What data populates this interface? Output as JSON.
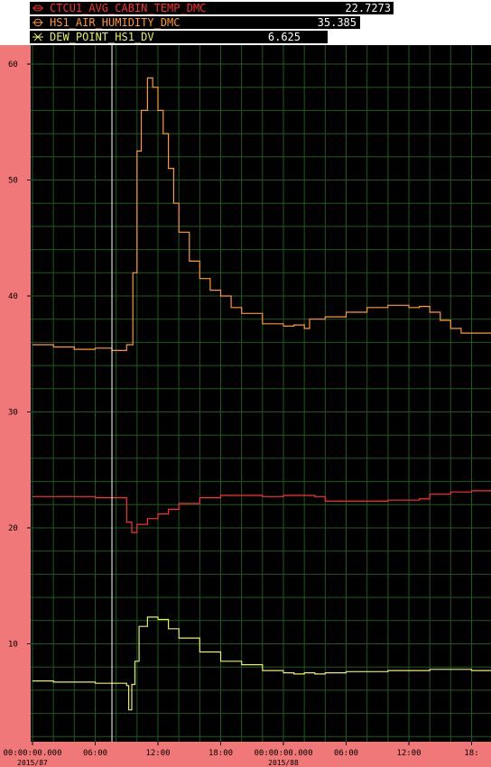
{
  "legend": [
    {
      "name": "CTCU1_AVG_CABIN_TEMP_DMC",
      "value": "22.7273",
      "color": "#ff3030",
      "marker": "ellipse-marker-icon"
    },
    {
      "name": "HS1_AIR_HUMIDITY_DMC",
      "value": "35.385",
      "color": "#ff9a2a",
      "marker": "circle-marker-icon"
    },
    {
      "name": "DEW_POINT_HS1_DV",
      "value": "6.625",
      "color": "#e8f060",
      "marker": "x-marker-icon"
    }
  ],
  "colors": {
    "plot_bg": "#000000",
    "grid": "#1f5a1f",
    "page_bg": "#f07878",
    "cursor": "#ffffff"
  },
  "chart_data": {
    "type": "line",
    "ylim": [
      0,
      60
    ],
    "y_ticks": [
      "60",
      "50",
      "40",
      "30",
      "20",
      "10"
    ],
    "xlim_hours": [
      0,
      44
    ],
    "x_ticks": [
      {
        "label": "00:00:00.000",
        "date": "2015/87"
      },
      {
        "label": "06:00",
        "date": ""
      },
      {
        "label": "12:00",
        "date": ""
      },
      {
        "label": "18:00",
        "date": ""
      },
      {
        "label": "00:00:00.000",
        "date": "2015/88"
      },
      {
        "label": "06:00",
        "date": ""
      },
      {
        "label": "12:00",
        "date": ""
      },
      {
        "label": "18:",
        "date": ""
      }
    ],
    "cursor_x": 7.6,
    "grid": true,
    "series": [
      {
        "name": "CTCU1_AVG_CABIN_TEMP_DMC",
        "color": "#ff3030",
        "x": [
          0,
          2,
          4,
          6,
          8,
          9,
          9.5,
          10,
          11,
          12,
          13,
          14,
          16,
          18,
          20,
          22,
          24,
          26,
          27,
          28,
          30,
          32,
          34,
          36,
          37,
          38,
          40,
          42,
          44
        ],
        "y": [
          22.7,
          22.7,
          22.7,
          22.6,
          22.6,
          20.5,
          19.6,
          20.3,
          20.8,
          21.2,
          21.6,
          22.1,
          22.6,
          22.8,
          22.8,
          22.7,
          22.8,
          22.8,
          22.7,
          22.3,
          22.3,
          22.3,
          22.4,
          22.4,
          22.5,
          22.9,
          23.1,
          23.2,
          23.3
        ]
      },
      {
        "name": "HS1_AIR_HUMIDITY_DMC",
        "color": "#ff9a2a",
        "x": [
          0,
          2,
          4,
          6,
          7.6,
          9,
          9.6,
          10,
          10.4,
          11,
          11.5,
          12,
          12.5,
          13,
          13.5,
          14,
          15,
          16,
          17,
          18,
          19,
          20,
          22,
          24,
          25,
          26,
          26.5,
          28,
          30,
          32,
          34,
          36,
          37,
          38,
          39,
          40,
          41,
          42,
          43,
          44
        ],
        "y": [
          35.8,
          35.6,
          35.4,
          35.5,
          35.3,
          35.8,
          42,
          52.5,
          56,
          58.8,
          58,
          56,
          54,
          51,
          48,
          45.5,
          43,
          41.5,
          40.5,
          40,
          39,
          38.5,
          37.6,
          37.4,
          37.5,
          37.2,
          38,
          38.2,
          38.6,
          39,
          39.2,
          39,
          39.1,
          38.6,
          37.9,
          37.2,
          36.8,
          36.8,
          36.8,
          36.7
        ]
      },
      {
        "name": "DEW_POINT_HS1_DV",
        "color": "#e8f060",
        "x": [
          0,
          2,
          4,
          6,
          8,
          9,
          9.2,
          9.5,
          9.8,
          10.2,
          11,
          12,
          13,
          14,
          16,
          18,
          20,
          22,
          24,
          25,
          26,
          27,
          28,
          30,
          32,
          34,
          36,
          38,
          40,
          42,
          44
        ],
        "y": [
          6.8,
          6.7,
          6.7,
          6.6,
          6.6,
          6.4,
          4.3,
          6.5,
          8.5,
          11.5,
          12.3,
          12.1,
          11.3,
          10.5,
          9.3,
          8.5,
          8.2,
          7.7,
          7.5,
          7.4,
          7.5,
          7.4,
          7.5,
          7.6,
          7.6,
          7.7,
          7.7,
          7.8,
          7.8,
          7.7,
          7.8
        ]
      }
    ]
  }
}
